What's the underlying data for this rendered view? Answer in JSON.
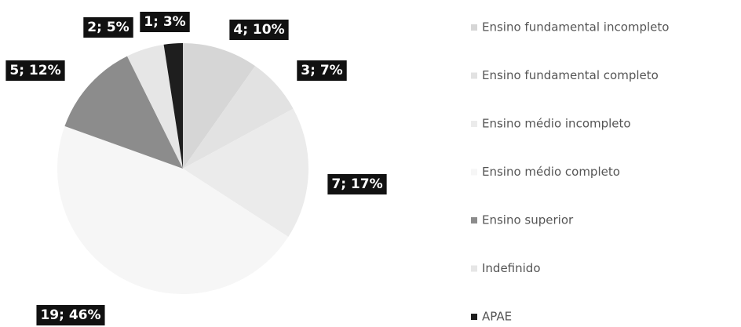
{
  "chart_data": {
    "type": "pie",
    "categories": [
      "Ensino fundamental incompleto",
      "Ensino fundamental completo",
      "Ensino médio incompleto",
      "Ensino médio completo",
      "Ensino superior",
      "Indefinido",
      "APAE"
    ],
    "values": [
      4,
      3,
      7,
      19,
      5,
      2,
      1
    ],
    "value_labels": [
      "4; 10%",
      "3; 7%",
      "7; 17%",
      "19; 46%",
      "5; 12%",
      "2; 5%",
      "1; 3%"
    ],
    "colors": [
      "#d6d6d6",
      "#e2e2e2",
      "#ebebeb",
      "#f6f6f6",
      "#8c8c8c",
      "#e6e6e6",
      "#1e1e1e"
    ],
    "legend": "right"
  }
}
